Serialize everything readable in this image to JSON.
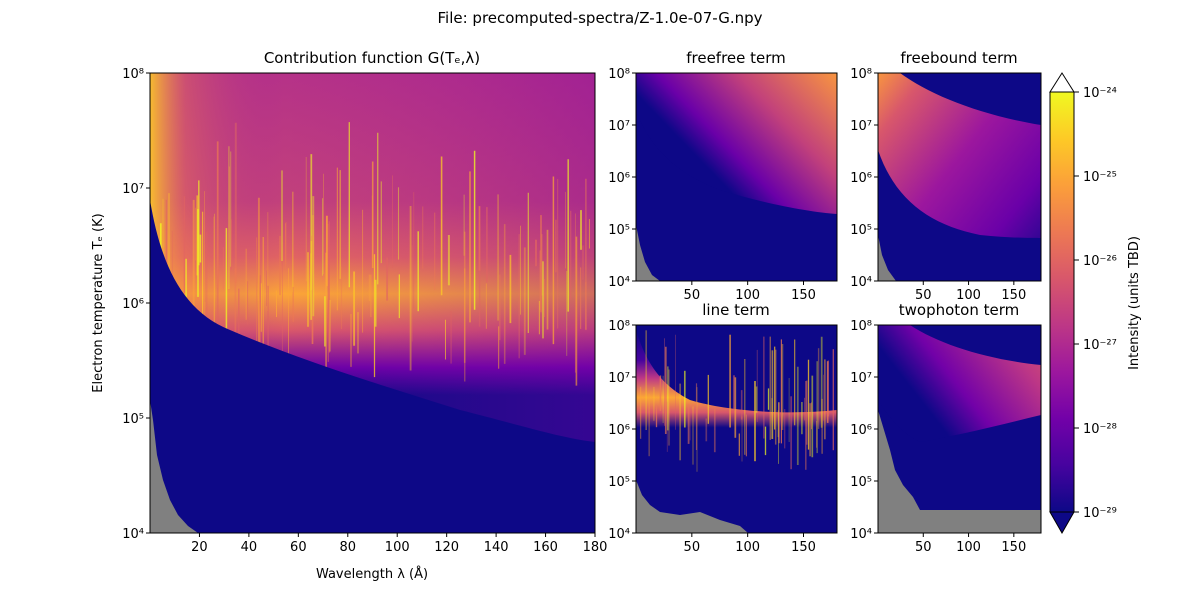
{
  "figure": {
    "suptitle": "File: precomputed-spectra/Z-1.0e-07-G.npy"
  },
  "colormap": [
    "#0d0887",
    "#46039f",
    "#7201a8",
    "#9c179e",
    "#bd3786",
    "#d8576b",
    "#ed7953",
    "#fb9f3a",
    "#fdca26",
    "#f0f921"
  ],
  "colors": {
    "background_below": "#0d0887",
    "missing_data": "#808080"
  },
  "chart_data": [
    {
      "type": "heatmap",
      "panel": "main",
      "title": "Contribution function G(Tₑ,λ)",
      "xlabel": "Wavelength λ (Å)",
      "ylabel": "Electron temperature Tₑ (K)",
      "xlim": [
        0,
        180
      ],
      "ylim": [
        10000,
        100000000
      ],
      "yscale": "log",
      "xticks": [
        "20",
        "40",
        "60",
        "80",
        "100",
        "120",
        "140",
        "160",
        "180"
      ],
      "yticks": [
        "10⁴",
        "10⁵",
        "10⁶",
        "10⁷",
        "10⁸"
      ],
      "description_values": "peak band ~1e6 K across 10–180 Å; bright ridge near 10 Å at 1e7 K"
    },
    {
      "type": "heatmap",
      "panel": "freefree",
      "title": "freefree term",
      "xlim": [
        0,
        180
      ],
      "ylim": [
        10000,
        100000000
      ],
      "yscale": "log",
      "xticks": [
        "50",
        "100",
        "150"
      ],
      "yticks": [
        "10⁴",
        "10⁵",
        "10⁶",
        "10⁷",
        "10⁸"
      ]
    },
    {
      "type": "heatmap",
      "panel": "freebound",
      "title": "freebound term",
      "xlim": [
        0,
        180
      ],
      "ylim": [
        10000,
        100000000
      ],
      "yscale": "log",
      "xticks": [
        "50",
        "100",
        "150"
      ],
      "yticks": [
        "10⁴",
        "10⁵",
        "10⁶",
        "10⁷",
        "10⁸"
      ]
    },
    {
      "type": "heatmap",
      "panel": "line",
      "title": "line term",
      "xlim": [
        0,
        180
      ],
      "ylim": [
        10000,
        100000000
      ],
      "yscale": "log",
      "xticks": [
        "50",
        "100",
        "150"
      ],
      "yticks": [
        "10⁴",
        "10⁵",
        "10⁶",
        "10⁷",
        "10⁸"
      ]
    },
    {
      "type": "heatmap",
      "panel": "twophoton",
      "title": "twophoton term",
      "xlim": [
        0,
        180
      ],
      "ylim": [
        10000,
        100000000
      ],
      "yscale": "log",
      "xticks": [
        "50",
        "100",
        "150"
      ],
      "yticks": [
        "10⁴",
        "10⁵",
        "10⁶",
        "10⁷",
        "10⁸"
      ]
    }
  ],
  "colorbar": {
    "label": "Intensity (units TBD)",
    "scale": "log",
    "range": [
      1e-29,
      1e-24
    ],
    "ticks": [
      "10⁻²⁴",
      "10⁻²⁵",
      "10⁻²⁶",
      "10⁻²⁷",
      "10⁻²⁸",
      "10⁻²⁹"
    ],
    "extend": "both"
  }
}
